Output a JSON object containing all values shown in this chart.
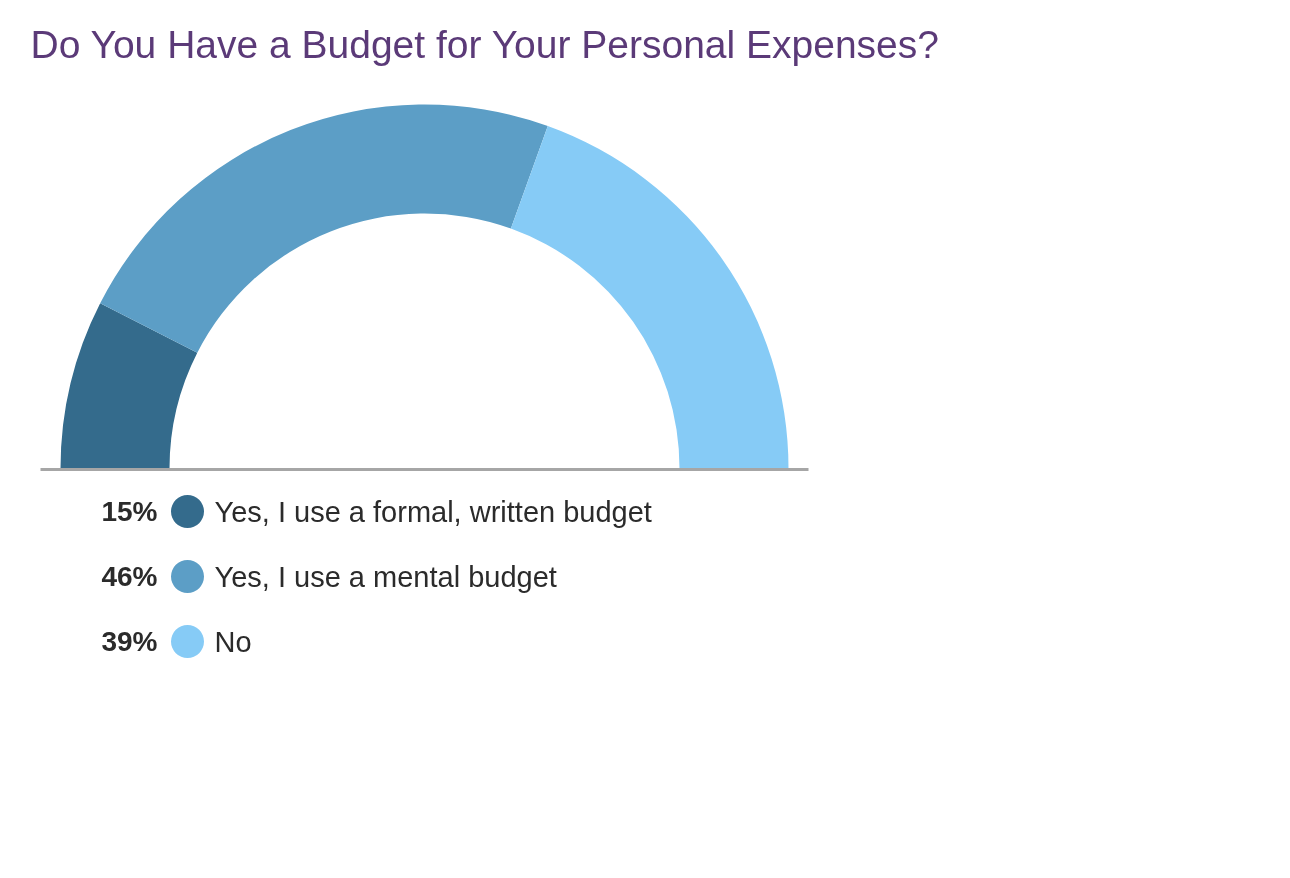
{
  "chart_data": {
    "type": "donut",
    "title": "Do You Have a Budget for Your Personal Expenses?",
    "categories": [
      "Yes, I use a formal, written budget",
      "Yes, I use a mental budget",
      "No"
    ],
    "values": [
      15,
      46,
      39
    ],
    "colors": [
      "#346b8c",
      "#5c9ec6",
      "#86cbf6"
    ],
    "value_labels": [
      "15%",
      "46%",
      "39%"
    ],
    "legend": "bottom left"
  }
}
